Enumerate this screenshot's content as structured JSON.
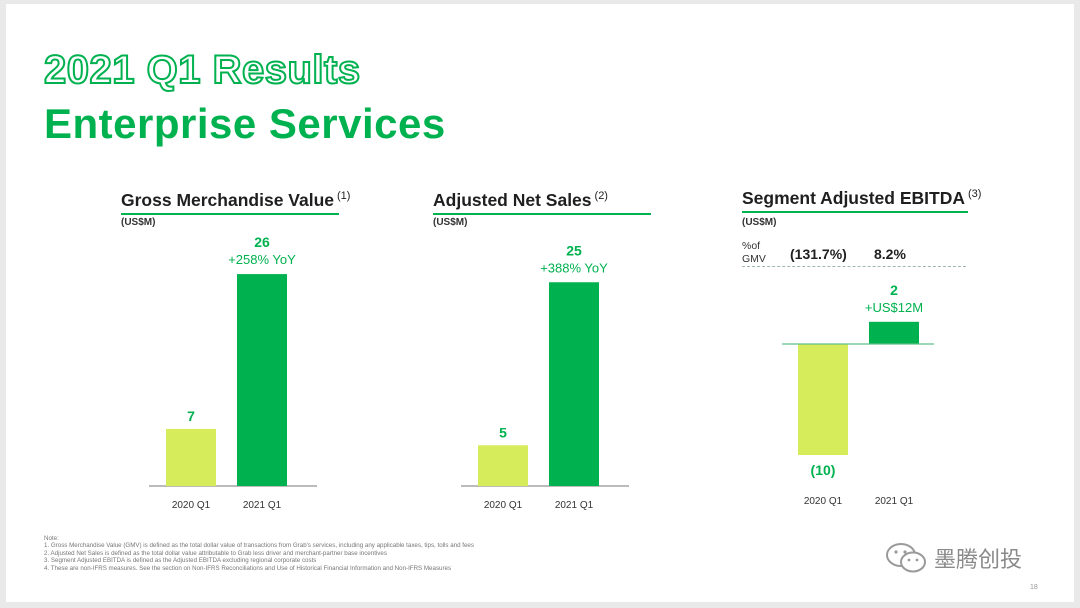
{
  "slide": {
    "title_line1": "2021 Q1 Results",
    "title_line2": "Enterprise Services",
    "page_number": "18"
  },
  "panels": [
    {
      "title": "Gross Merchandise Value",
      "footnote_ref": "(1)",
      "unit": "(US$M)",
      "bars": [
        {
          "period": "2020 Q1",
          "value": 7,
          "label": "7",
          "color": "#d7ec5a"
        },
        {
          "period": "2021 Q1",
          "value": 26,
          "label": "26",
          "sublabel": "+258% YoY",
          "color": "#00b14f"
        }
      ]
    },
    {
      "title": "Adjusted Net Sales",
      "footnote_ref": "(2)",
      "unit": "(US$M)",
      "bars": [
        {
          "period": "2020 Q1",
          "value": 5,
          "label": "5",
          "color": "#d7ec5a"
        },
        {
          "period": "2021 Q1",
          "value": 25,
          "label": "25",
          "sublabel": "+388% YoY",
          "color": "#00b14f"
        }
      ]
    },
    {
      "title": "Segment Adjusted EBITDA",
      "footnote_ref": "(3)",
      "unit": "(US$M)",
      "pct_of_gmv_label": "%of GMV",
      "pct_of_gmv": [
        "(131.7%)",
        "8.2%"
      ],
      "bars": [
        {
          "period": "2020 Q1",
          "value": -10,
          "label": "(10)",
          "color": "#d7ec5a"
        },
        {
          "period": "2021 Q1",
          "value": 2,
          "label": "2",
          "sublabel": "+US$12M",
          "color": "#00b14f"
        }
      ]
    }
  ],
  "chart_data": [
    {
      "type": "bar",
      "title": "Gross Merchandise Value",
      "ylabel": "(US$M)",
      "categories": [
        "2020 Q1",
        "2021 Q1"
      ],
      "values": [
        7,
        26
      ]
    },
    {
      "type": "bar",
      "title": "Adjusted Net Sales",
      "ylabel": "(US$M)",
      "categories": [
        "2020 Q1",
        "2021 Q1"
      ],
      "values": [
        5,
        25
      ]
    },
    {
      "type": "bar",
      "title": "Segment Adjusted EBITDA",
      "ylabel": "(US$M)",
      "categories": [
        "2020 Q1",
        "2021 Q1"
      ],
      "values": [
        -10,
        2
      ]
    }
  ],
  "notes": {
    "heading": "Note:",
    "lines": [
      "1. Gross Merchandise Value (GMV) is defined as the total dollar value of transactions from Grab's services, including any applicable taxes, tips, tolls and fees",
      "2. Adjusted Net Sales is defined as the total dollar value attributable to Grab less driver and merchant-partner base incentives",
      "3. Segment Adjusted EBITDA is defined as the Adjusted EBITDA excluding regional corporate costs",
      "4. These are non-IFRS measures. See the section on Non-IFRS Reconciliations and Use of Historical Financial Information and Non-IFRS Measures"
    ]
  },
  "watermark": {
    "text": "墨腾创投",
    "icon": "wechat-icon"
  }
}
